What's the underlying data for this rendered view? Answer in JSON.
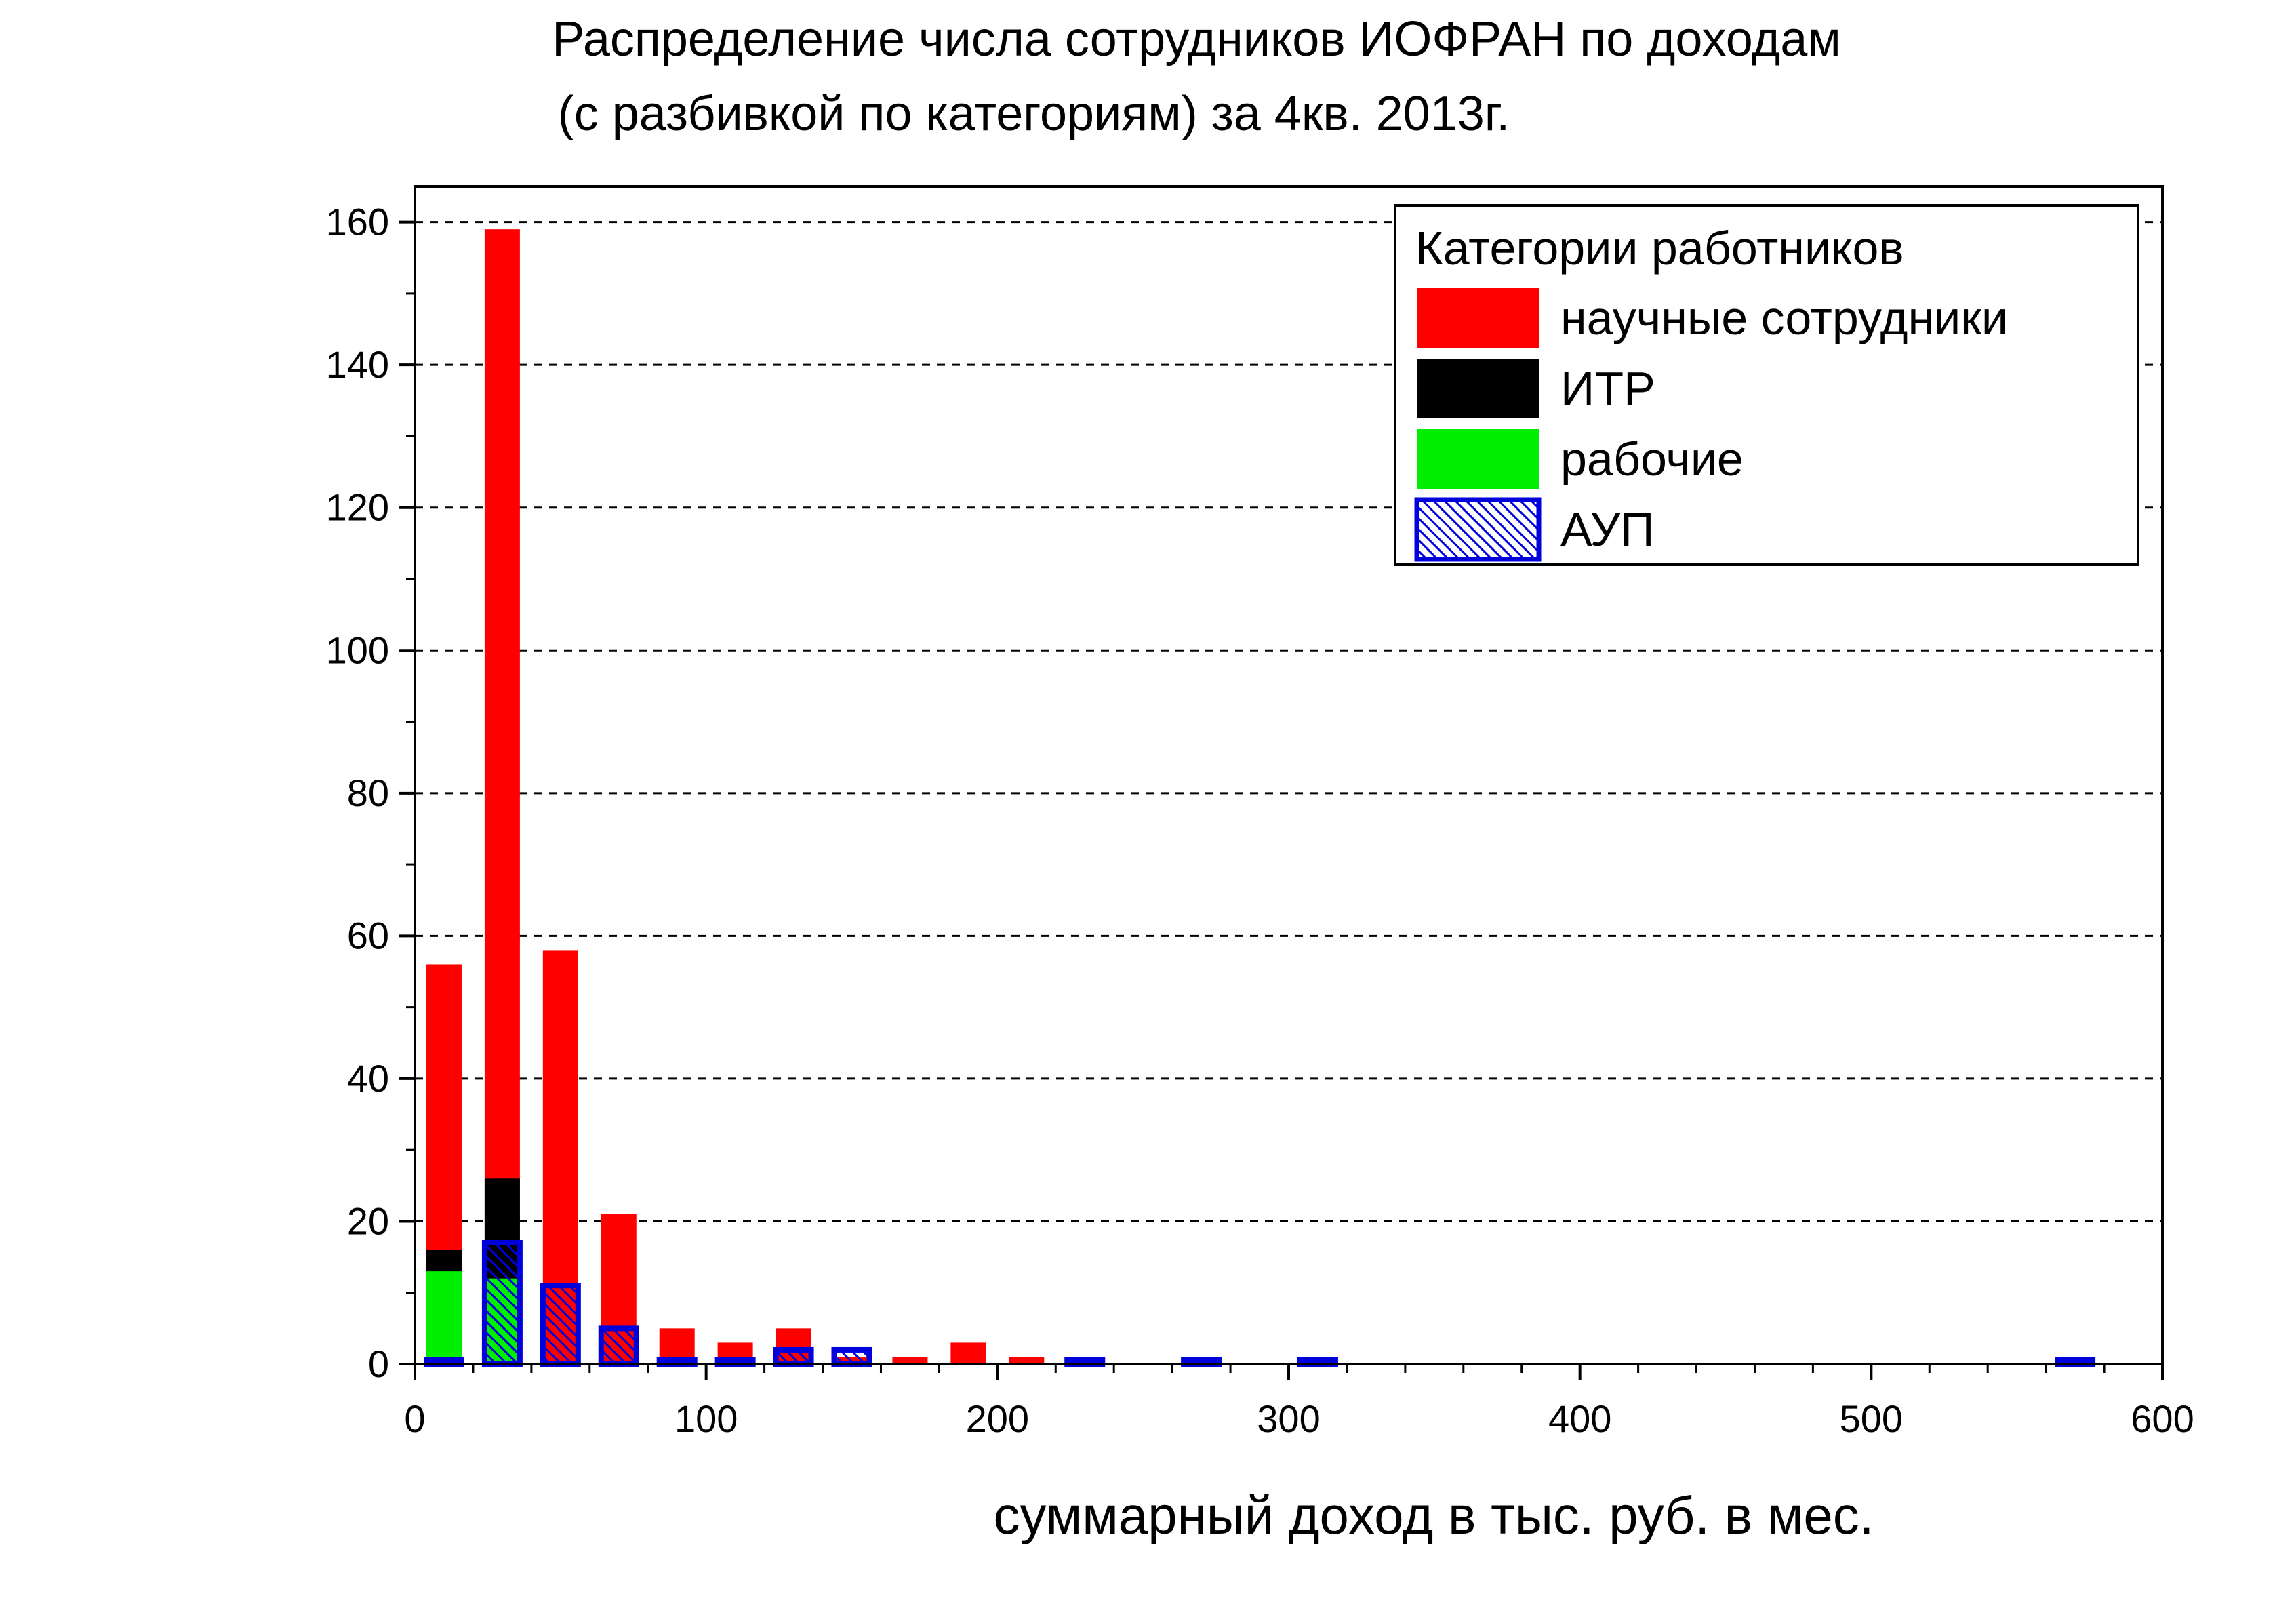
{
  "chart_data": {
    "type": "bar",
    "title_line1": "Распределение числа сотрудников ИОФРАН по доходам",
    "title_line2": "(с разбивкой по категориям) за 4кв. 2013г.",
    "xlabel": "суммарный доход в тыс. руб. в мес.",
    "ylabel": "",
    "xlim": [
      0,
      600
    ],
    "ylim": [
      0,
      165
    ],
    "x_ticks": [
      0,
      100,
      200,
      300,
      400,
      500,
      600
    ],
    "y_ticks": [
      0,
      20,
      40,
      60,
      80,
      100,
      120,
      140,
      160
    ],
    "grid": "horizontal dashed",
    "legend_placement": "top-right",
    "legend_title": "Категории работников",
    "bin_width": 20,
    "series": [
      {
        "name": "научные сотрудники",
        "color": "#ff0000",
        "style": "filled",
        "x": [
          10,
          30,
          50,
          70,
          90,
          110,
          130,
          150,
          170,
          190,
          210
        ],
        "values": [
          56,
          159,
          58,
          21,
          5,
          3,
          5,
          1,
          1,
          3,
          1
        ]
      },
      {
        "name": "ИТР",
        "color": "#000000",
        "style": "filled",
        "x": [
          10,
          30
        ],
        "values": [
          16,
          26
        ]
      },
      {
        "name": "рабочие",
        "color": "#00ee00",
        "style": "filled",
        "x": [
          10,
          30
        ],
        "values": [
          13,
          12
        ]
      },
      {
        "name": "АУП",
        "color": "#0000dd",
        "style": "hatched-outline",
        "x": [
          10,
          30,
          50,
          70,
          90,
          110,
          130,
          150,
          230,
          270,
          310,
          570
        ],
        "values": [
          0.5,
          17,
          11,
          5,
          0.5,
          0.5,
          2,
          2,
          0.5,
          0.5,
          0.5,
          0.5
        ]
      }
    ]
  }
}
